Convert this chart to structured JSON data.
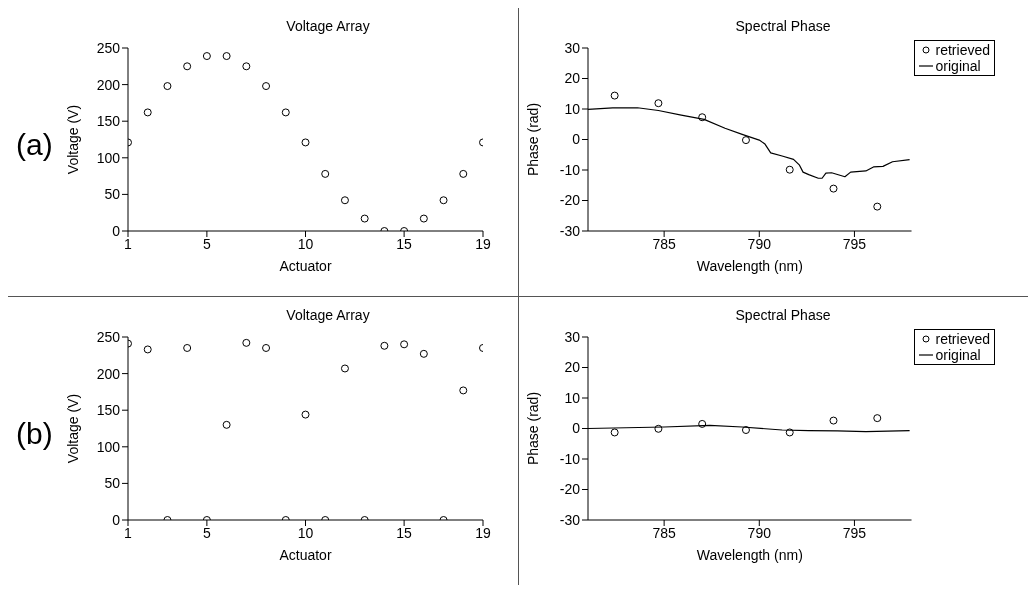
{
  "chart_data": [
    {
      "type": "scatter",
      "title": "Voltage Array",
      "xlabel": "Actuator",
      "ylabel": "Voltage (V)",
      "annotations": [
        "(a)"
      ],
      "marker": "circle",
      "color": "#000000",
      "x": [
        1,
        2,
        3,
        4,
        5,
        6,
        7,
        8,
        9,
        10,
        11,
        12,
        13,
        14,
        15,
        16,
        17,
        18,
        19
      ],
      "values": [
        121,
        162,
        198,
        225,
        239,
        239,
        225,
        198,
        162,
        121,
        78,
        42,
        17,
        0,
        0,
        17,
        42,
        78,
        121
      ],
      "xlim": [
        1,
        19
      ],
      "xticks": [
        1,
        5,
        10,
        15,
        19
      ],
      "ylim": [
        0,
        250
      ],
      "yticks": [
        0,
        50,
        100,
        150,
        200,
        250
      ],
      "grid": false,
      "legend": false
    },
    {
      "type": "scatter",
      "title": "Spectral Phase",
      "xlabel": "Wavelength (nm)",
      "ylabel": "Phase (rad)",
      "legend": "top right",
      "grid": false,
      "xlim": [
        781,
        798
      ],
      "xticks": [
        785,
        790,
        795
      ],
      "ylim": [
        -30,
        30
      ],
      "yticks": [
        -30,
        -20,
        -10,
        0,
        10,
        20,
        30
      ],
      "series": [
        {
          "name": "retrieved",
          "marker": "circle",
          "color": "#000000",
          "x": [
            782.4,
            784.7,
            787.0,
            789.3,
            791.6,
            793.9,
            796.2
          ],
          "values": [
            14.4,
            11.9,
            7.3,
            -0.2,
            -9.9,
            -16.1,
            -22
          ]
        },
        {
          "name": "original",
          "type": "line",
          "marker": "none",
          "color": "#000000",
          "x": [
            781.0,
            782.3,
            783.6,
            784.7,
            785.9,
            787.1,
            788.2,
            789.1,
            790.0,
            790.3,
            790.6,
            791.2,
            791.8,
            792.1,
            792.3,
            792.6,
            793.1,
            793.3,
            793.5,
            793.8,
            794.5,
            794.8,
            795.6,
            796.0,
            796.5,
            797.0,
            797.9
          ],
          "values": [
            9.9,
            10.4,
            10.4,
            9.5,
            8.0,
            6.6,
            3.7,
            1.7,
            -0.2,
            -1.5,
            -4.4,
            -5.4,
            -6.5,
            -8.3,
            -10.7,
            -11.5,
            -12.7,
            -12.7,
            -11.0,
            -10.9,
            -12.2,
            -10.7,
            -10.3,
            -9.0,
            -8.8,
            -7.3,
            -6.6
          ]
        }
      ]
    },
    {
      "type": "scatter",
      "title": "Voltage Array",
      "xlabel": "Actuator",
      "ylabel": "Voltage (V)",
      "annotations": [
        "(b)"
      ],
      "marker": "circle",
      "color": "#000000",
      "x": [
        1,
        2,
        3,
        4,
        5,
        6,
        7,
        8,
        9,
        10,
        11,
        12,
        13,
        14,
        15,
        16,
        17,
        18,
        19
      ],
      "values": [
        241,
        233,
        0,
        235,
        0,
        130,
        242,
        235,
        0,
        144,
        0,
        207,
        0,
        238,
        240,
        227,
        0,
        177,
        235
      ],
      "xlim": [
        1,
        19
      ],
      "xticks": [
        1,
        5,
        10,
        15,
        19
      ],
      "ylim": [
        0,
        250
      ],
      "yticks": [
        0,
        50,
        100,
        150,
        200,
        250
      ],
      "grid": false,
      "legend": false
    },
    {
      "type": "scatter",
      "title": "Spectral Phase",
      "xlabel": "Wavelength (nm)",
      "ylabel": "Phase (rad)",
      "legend": "top right",
      "grid": false,
      "xlim": [
        781,
        798
      ],
      "xticks": [
        785,
        790,
        795
      ],
      "ylim": [
        -30,
        30
      ],
      "yticks": [
        -30,
        -20,
        -10,
        0,
        10,
        20,
        30
      ],
      "series": [
        {
          "name": "retrieved",
          "marker": "circle",
          "color": "#000000",
          "x": [
            782.4,
            784.7,
            787.0,
            789.3,
            791.6,
            793.9,
            796.2
          ],
          "values": [
            -1.3,
            -0.1,
            1.5,
            -0.5,
            -1.3,
            2.6,
            3.4
          ]
        },
        {
          "name": "original",
          "type": "line",
          "marker": "none",
          "color": "#000000",
          "x": [
            781.0,
            785.0,
            787.4,
            789.1,
            791.2,
            792.6,
            794.1,
            795.6,
            797.9
          ],
          "values": [
            0.0,
            0.5,
            1.0,
            0.5,
            -0.5,
            -0.7,
            -0.8,
            -1.0,
            -0.7
          ]
        }
      ]
    }
  ]
}
